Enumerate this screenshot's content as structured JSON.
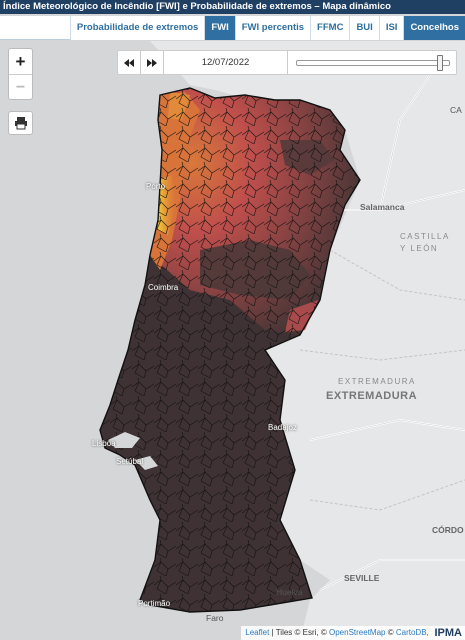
{
  "window": {
    "title": "Índice Meteorológico de Incêndio [FWI] e Probabilidade de extremos – Mapa dinâmico"
  },
  "tabs": [
    {
      "label": "Probabilidade de extremos",
      "active": false
    },
    {
      "label": "FWI",
      "active": true
    },
    {
      "label": "FWI percentis",
      "active": false
    },
    {
      "label": "FFMC",
      "active": false
    },
    {
      "label": "BUI",
      "active": false
    },
    {
      "label": "ISI",
      "active": false
    },
    {
      "label": "Concelhos",
      "active": true
    }
  ],
  "zoom": {
    "in_label": "+",
    "out_label": "−"
  },
  "time_control": {
    "date": "12/07/2022",
    "position": 0.95
  },
  "map_labels": {
    "porto": "Porto",
    "coimbra": "Coimbra",
    "lisboa": "Lisboa",
    "setubal": "Setúbal",
    "salamanca": "Salamanca",
    "castilla1": "CASTILLA",
    "castilla2": "Y LEÓN",
    "extremadura_small": "EXTREMADURA",
    "extremadura_big": "EXTREMADURA",
    "badajoz": "Badajoz",
    "cordoba": "CÓRDO",
    "sevilla": "SEVILLE",
    "huelva": "Huelva",
    "portimao": "Portimão",
    "faro": "Faro",
    "ca_top": "CA"
  },
  "attribution": {
    "leaflet": "Leaflet",
    "tiles": "| Tiles © Esri, ©",
    "osm": "OpenStreetMap",
    "sep": "©",
    "carto": "CartoDB,",
    "logo": "IPMA"
  },
  "colors": {
    "title_bg": "#1f3f63",
    "tab_active": "#2f6fa1",
    "fwi_extreme": "#3f3234",
    "fwi_very_high": "#6a3a3a",
    "fwi_high": "#b24a4e",
    "fwi_moderate": "#d8733a",
    "fwi_low": "#f0c431",
    "land_spain": "#e6e7e8",
    "sea": "#d4d6d8"
  }
}
